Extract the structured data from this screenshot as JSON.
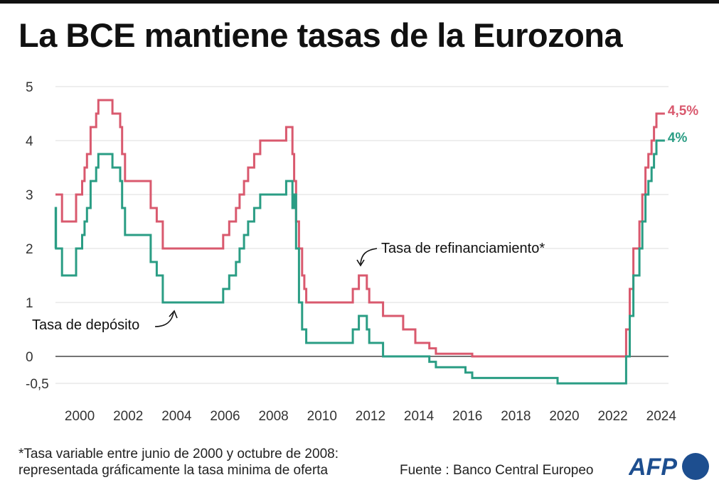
{
  "title": "La BCE mantiene tasas de la Eurozona",
  "footnote": {
    "line1": "*Tasa variable entre junio de 2000 y octubre de 2008:",
    "line2": "representada gráficamente la tasa minima de oferta"
  },
  "source": "Fuente : Banco Central Europeo",
  "logo_text": "AFP",
  "chart_data": {
    "type": "line",
    "step": true,
    "title": "La BCE mantiene tasas de la Eurozona",
    "xlabel": "",
    "ylabel": "",
    "xlim": [
      1999,
      2024.3
    ],
    "ylim": [
      -0.5,
      5
    ],
    "x_ticks": [
      "2000",
      "2002",
      "2004",
      "2006",
      "2008",
      "2010",
      "2012",
      "2014",
      "2016",
      "2018",
      "2020",
      "2022",
      "2024"
    ],
    "y_ticks": [
      {
        "value": 5,
        "label": "5"
      },
      {
        "value": 4,
        "label": "4"
      },
      {
        "value": 3,
        "label": "3"
      },
      {
        "value": 2,
        "label": "2"
      },
      {
        "value": 1,
        "label": "1"
      },
      {
        "value": 0,
        "label": "0"
      },
      {
        "value": -0.5,
        "label": "-0,5"
      }
    ],
    "grid": true,
    "series": [
      {
        "name": "Tasa de refinanciamiento*",
        "color": "#d9596e",
        "end_label": "4,5%",
        "points": [
          [
            1999.0,
            3.0
          ],
          [
            1999.27,
            2.5
          ],
          [
            1999.85,
            3.0
          ],
          [
            2000.1,
            3.25
          ],
          [
            2000.2,
            3.5
          ],
          [
            2000.3,
            3.75
          ],
          [
            2000.45,
            4.25
          ],
          [
            2000.68,
            4.5
          ],
          [
            2000.77,
            4.75
          ],
          [
            2001.35,
            4.5
          ],
          [
            2001.67,
            4.25
          ],
          [
            2001.75,
            3.75
          ],
          [
            2001.87,
            3.25
          ],
          [
            2002.93,
            2.75
          ],
          [
            2003.18,
            2.5
          ],
          [
            2003.43,
            2.0
          ],
          [
            2005.92,
            2.25
          ],
          [
            2006.17,
            2.5
          ],
          [
            2006.45,
            2.75
          ],
          [
            2006.6,
            3.0
          ],
          [
            2006.78,
            3.25
          ],
          [
            2006.95,
            3.5
          ],
          [
            2007.2,
            3.75
          ],
          [
            2007.45,
            4.0
          ],
          [
            2008.52,
            4.25
          ],
          [
            2008.78,
            3.75
          ],
          [
            2008.85,
            3.25
          ],
          [
            2008.93,
            2.5
          ],
          [
            2009.05,
            2.0
          ],
          [
            2009.18,
            1.5
          ],
          [
            2009.27,
            1.25
          ],
          [
            2009.35,
            1.0
          ],
          [
            2011.27,
            1.25
          ],
          [
            2011.52,
            1.5
          ],
          [
            2011.85,
            1.25
          ],
          [
            2011.95,
            1.0
          ],
          [
            2012.52,
            0.75
          ],
          [
            2013.35,
            0.5
          ],
          [
            2013.85,
            0.25
          ],
          [
            2014.43,
            0.15
          ],
          [
            2014.7,
            0.05
          ],
          [
            2016.2,
            0.0
          ],
          [
            2022.55,
            0.5
          ],
          [
            2022.7,
            1.25
          ],
          [
            2022.85,
            2.0
          ],
          [
            2023.1,
            2.5
          ],
          [
            2023.22,
            3.0
          ],
          [
            2023.35,
            3.5
          ],
          [
            2023.47,
            3.75
          ],
          [
            2023.6,
            4.0
          ],
          [
            2023.7,
            4.25
          ],
          [
            2023.8,
            4.5
          ],
          [
            2024.15,
            4.5
          ]
        ]
      },
      {
        "name": "Tasa de depósito",
        "color": "#2a9d84",
        "end_label": "4%",
        "points": [
          [
            1999.0,
            2.0
          ],
          [
            1999.01,
            2.75
          ],
          [
            1999.02,
            2.0
          ],
          [
            1999.27,
            1.5
          ],
          [
            1999.85,
            2.0
          ],
          [
            2000.1,
            2.25
          ],
          [
            2000.2,
            2.5
          ],
          [
            2000.3,
            2.75
          ],
          [
            2000.45,
            3.25
          ],
          [
            2000.68,
            3.5
          ],
          [
            2000.77,
            3.75
          ],
          [
            2001.35,
            3.5
          ],
          [
            2001.67,
            3.25
          ],
          [
            2001.75,
            2.75
          ],
          [
            2001.87,
            2.25
          ],
          [
            2002.93,
            1.75
          ],
          [
            2003.18,
            1.5
          ],
          [
            2003.43,
            1.0
          ],
          [
            2005.92,
            1.25
          ],
          [
            2006.17,
            1.5
          ],
          [
            2006.45,
            1.75
          ],
          [
            2006.6,
            2.0
          ],
          [
            2006.78,
            2.25
          ],
          [
            2006.95,
            2.5
          ],
          [
            2007.2,
            2.75
          ],
          [
            2007.45,
            3.0
          ],
          [
            2008.52,
            3.25
          ],
          [
            2008.78,
            2.75
          ],
          [
            2008.85,
            3.0
          ],
          [
            2008.93,
            2.0
          ],
          [
            2009.05,
            1.0
          ],
          [
            2009.18,
            0.5
          ],
          [
            2009.35,
            0.25
          ],
          [
            2011.27,
            0.5
          ],
          [
            2011.52,
            0.75
          ],
          [
            2011.85,
            0.5
          ],
          [
            2011.95,
            0.25
          ],
          [
            2012.52,
            0.0
          ],
          [
            2014.43,
            -0.1
          ],
          [
            2014.7,
            -0.2
          ],
          [
            2015.92,
            -0.3
          ],
          [
            2016.2,
            -0.4
          ],
          [
            2019.72,
            -0.5
          ],
          [
            2022.55,
            0.0
          ],
          [
            2022.7,
            0.75
          ],
          [
            2022.85,
            1.5
          ],
          [
            2023.1,
            2.0
          ],
          [
            2023.22,
            2.5
          ],
          [
            2023.35,
            3.0
          ],
          [
            2023.47,
            3.25
          ],
          [
            2023.6,
            3.5
          ],
          [
            2023.7,
            3.75
          ],
          [
            2023.8,
            4.0
          ],
          [
            2024.15,
            4.0
          ]
        ]
      }
    ],
    "annotations": [
      {
        "text": "Tasa de refinanciamiento*",
        "target_series": "Tasa de refinanciamiento*"
      },
      {
        "text": "Tasa de depósito",
        "target_series": "Tasa de depósito"
      }
    ]
  }
}
